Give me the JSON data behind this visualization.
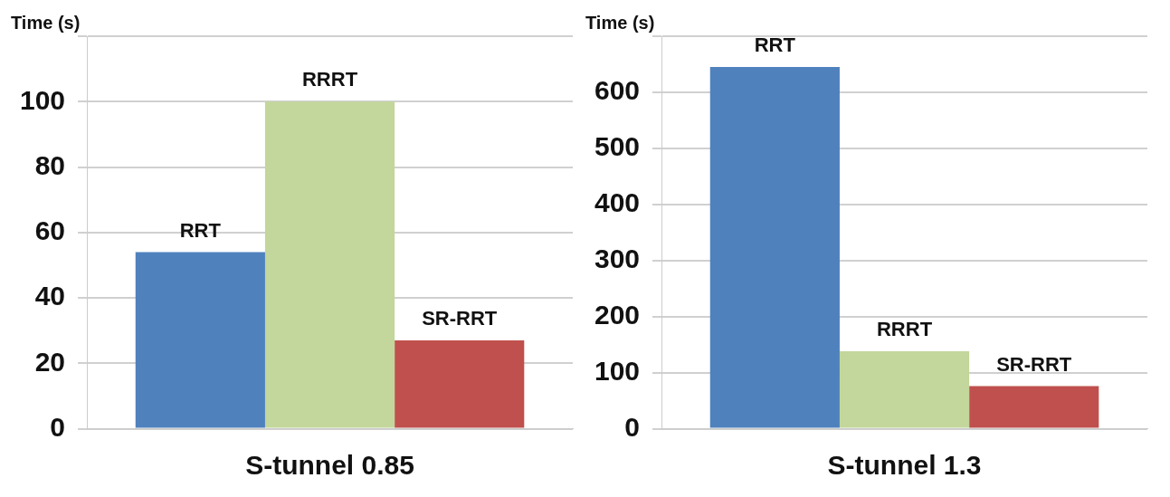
{
  "chart_data": [
    {
      "type": "bar",
      "ylabel": "Time (s)",
      "xlabel": "S-tunnel 0.85",
      "categories": [
        null
      ],
      "series": [
        {
          "name": "RRT",
          "color": "#4f81bd",
          "values": [
            54
          ]
        },
        {
          "name": "RRRT",
          "color": "#c3d69b",
          "values": [
            100
          ]
        },
        {
          "name": "SR-RRT",
          "color": "#c0504d",
          "values": [
            27
          ]
        }
      ],
      "ylim": [
        0,
        120
      ],
      "yticks": [
        0,
        20,
        40,
        60,
        80,
        100,
        {
          "value": 120,
          "label": null
        }
      ],
      "grid": "y",
      "legend": false
    },
    {
      "type": "bar",
      "ylabel": "Time (s)",
      "xlabel": "S-tunnel 1.3",
      "categories": [
        null
      ],
      "series": [
        {
          "name": "RRT",
          "color": "#4f81bd",
          "values": [
            645
          ]
        },
        {
          "name": "RRRT",
          "color": "#c3d69b",
          "values": [
            138
          ]
        },
        {
          "name": "SR-RRT",
          "color": "#c0504d",
          "values": [
            76
          ]
        }
      ],
      "ylim": [
        0,
        700
      ],
      "yticks": [
        0,
        100,
        200,
        300,
        400,
        500,
        600,
        {
          "value": 700,
          "label": null
        }
      ],
      "grid": "y",
      "legend": false
    }
  ]
}
